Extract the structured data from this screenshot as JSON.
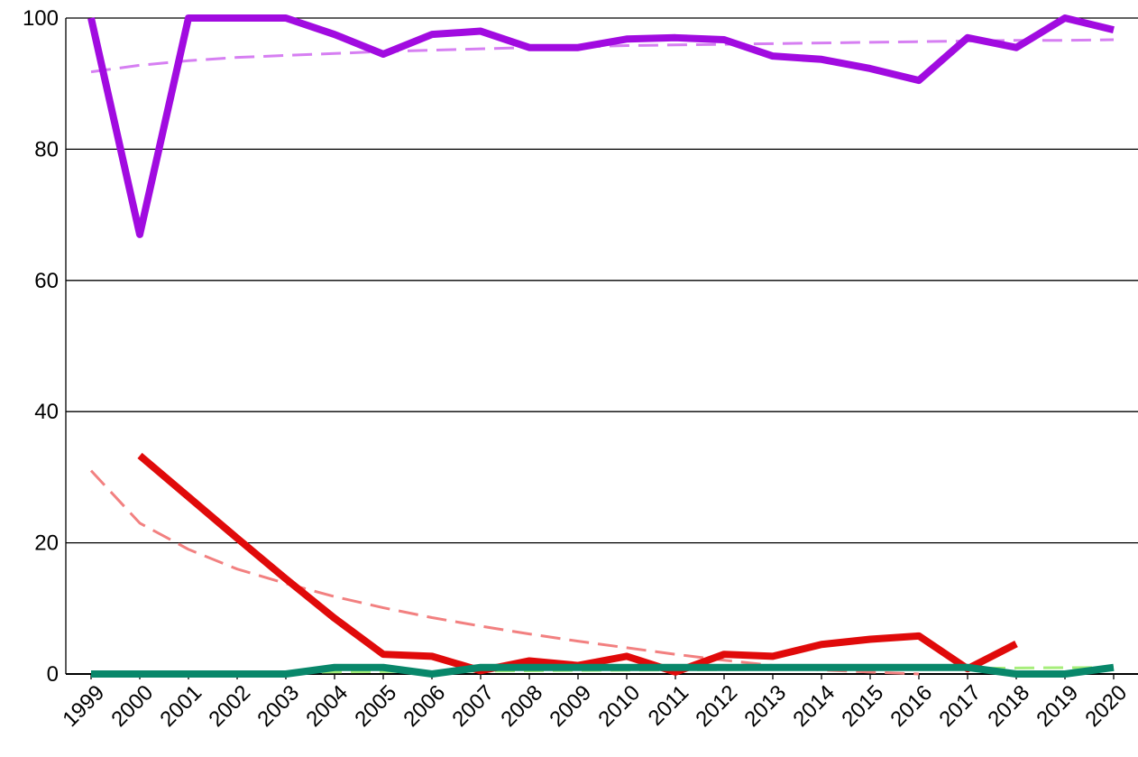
{
  "chart_data": {
    "type": "line",
    "categories": [
      "1999",
      "2000",
      "2001",
      "2002",
      "2003",
      "2004",
      "2005",
      "2006",
      "2007",
      "2008",
      "2009",
      "2010",
      "2011",
      "2012",
      "2013",
      "2014",
      "2015",
      "2016",
      "2017",
      "2018",
      "2019",
      "2020"
    ],
    "series": [
      {
        "color": "#d67ff2",
        "dashed": true,
        "values": [
          91.8,
          92.8,
          93.5,
          94,
          94.3,
          94.6,
          94.9,
          95.1,
          95.3,
          95.5,
          95.6,
          95.8,
          95.9,
          96,
          96.1,
          96.2,
          96.3,
          96.4,
          96.5,
          96.6,
          96.6,
          96.7
        ]
      },
      {
        "color": "#f28080",
        "dashed": true,
        "values": [
          31,
          23,
          19,
          16,
          13.8,
          11.8,
          10.1,
          8.6,
          7.3,
          6.1,
          5,
          4,
          3,
          2.1,
          1.3,
          0.6,
          0.3,
          0,
          null,
          null,
          null,
          null
        ]
      },
      {
        "color": "#a6ee7a",
        "dashed": true,
        "values": [
          0.1,
          0.14,
          0.19,
          0.23,
          0.27,
          0.31,
          0.36,
          0.4,
          0.44,
          0.49,
          0.53,
          0.57,
          0.61,
          0.66,
          0.7,
          0.74,
          0.79,
          0.83,
          0.87,
          0.91,
          0.96,
          1
        ]
      },
      {
        "color": "#a10be0",
        "dashed": false,
        "values": [
          100,
          67,
          100,
          100,
          100,
          97.5,
          94.5,
          97.5,
          98,
          95.5,
          95.5,
          96.8,
          97,
          96.7,
          94.2,
          93.7,
          92.3,
          90.5,
          97,
          95.5,
          100,
          98.2
        ]
      },
      {
        "color": "#e00a0a",
        "dashed": false,
        "values": [
          null,
          33.3,
          27,
          20.7,
          14.5,
          8.5,
          3,
          2.7,
          0.5,
          2,
          1.3,
          2.7,
          0.3,
          3,
          2.7,
          4.5,
          5.3,
          5.8,
          0.8,
          4.6,
          null,
          null
        ]
      },
      {
        "color": "#08876a",
        "dashed": false,
        "values": [
          0,
          0,
          0,
          0,
          0,
          1,
          1,
          0,
          1,
          1,
          1,
          1,
          1,
          1,
          1,
          1,
          1,
          1,
          1,
          0,
          0,
          1
        ]
      }
    ],
    "ylim": [
      0,
      100
    ],
    "yticks": [
      0,
      20,
      40,
      60,
      80,
      100
    ],
    "grid": true
  }
}
